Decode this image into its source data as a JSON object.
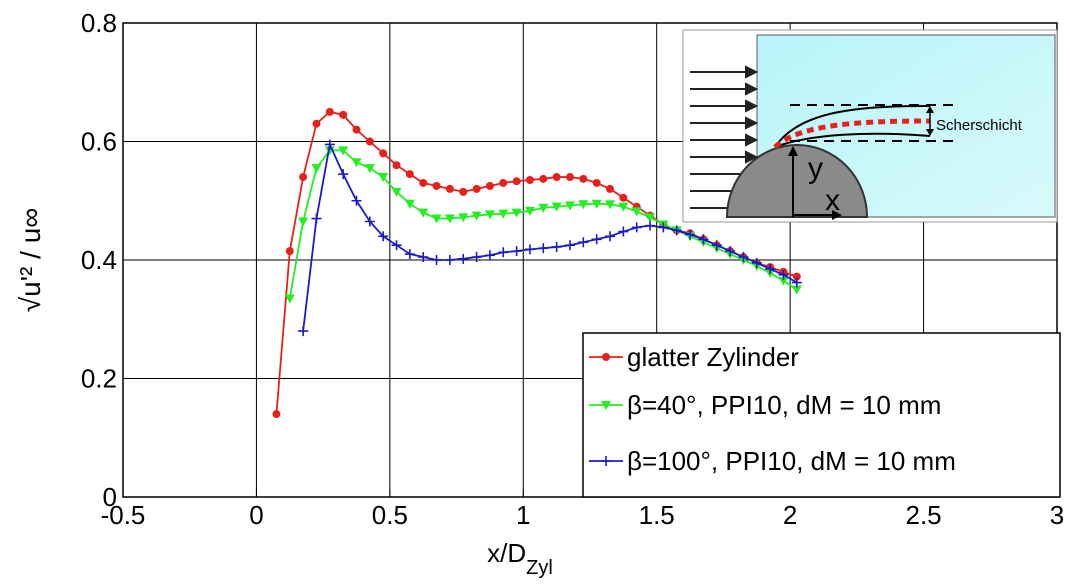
{
  "chart_data": {
    "type": "line",
    "xlabel": "x/D",
    "xlabel_sub": "Zyl",
    "ylabel": "√u'² / u∞",
    "xlim": [
      -0.5,
      3
    ],
    "xticks": [
      -0.5,
      0,
      0.5,
      1,
      1.5,
      2,
      2.5,
      3
    ],
    "ylim": [
      0,
      0.8
    ],
    "yticks": [
      0,
      0.2,
      0.4,
      0.6,
      0.8
    ],
    "grid": true,
    "legend": "lower right",
    "series": [
      {
        "name": "glatter Zylinder",
        "color": "#e8201c",
        "marker": "circle",
        "x": [
          0.075,
          0.125,
          0.175,
          0.225,
          0.275,
          0.325,
          0.375,
          0.425,
          0.475,
          0.525,
          0.575,
          0.625,
          0.675,
          0.725,
          0.775,
          0.825,
          0.875,
          0.925,
          0.975,
          1.025,
          1.075,
          1.125,
          1.175,
          1.225,
          1.275,
          1.325,
          1.375,
          1.425,
          1.475,
          1.525,
          1.575,
          1.625,
          1.675,
          1.725,
          1.775,
          1.825,
          1.875,
          1.925,
          1.975,
          2.025
        ],
        "values": [
          0.14,
          0.415,
          0.54,
          0.63,
          0.65,
          0.645,
          0.62,
          0.6,
          0.58,
          0.56,
          0.545,
          0.53,
          0.525,
          0.52,
          0.515,
          0.52,
          0.525,
          0.53,
          0.533,
          0.535,
          0.537,
          0.54,
          0.54,
          0.537,
          0.53,
          0.52,
          0.505,
          0.49,
          0.475,
          0.46,
          0.45,
          0.445,
          0.435,
          0.425,
          0.415,
          0.405,
          0.395,
          0.388,
          0.38,
          0.372
        ]
      },
      {
        "name": "β=40°, PPI10, dM = 10 mm",
        "color": "#22ee22",
        "marker": "triangle-down",
        "x": [
          0.125,
          0.175,
          0.225,
          0.275,
          0.325,
          0.375,
          0.425,
          0.475,
          0.525,
          0.575,
          0.625,
          0.675,
          0.725,
          0.775,
          0.825,
          0.875,
          0.925,
          0.975,
          1.025,
          1.075,
          1.125,
          1.175,
          1.225,
          1.275,
          1.325,
          1.375,
          1.425,
          1.475,
          1.525,
          1.575,
          1.625,
          1.675,
          1.725,
          1.775,
          1.825,
          1.875,
          1.925,
          1.975,
          2.025
        ],
        "values": [
          0.335,
          0.465,
          0.555,
          0.585,
          0.585,
          0.565,
          0.555,
          0.54,
          0.515,
          0.495,
          0.48,
          0.47,
          0.47,
          0.472,
          0.475,
          0.477,
          0.478,
          0.48,
          0.483,
          0.488,
          0.49,
          0.492,
          0.494,
          0.495,
          0.494,
          0.49,
          0.482,
          0.472,
          0.46,
          0.45,
          0.44,
          0.43,
          0.42,
          0.41,
          0.4,
          0.39,
          0.378,
          0.365,
          0.35
        ]
      },
      {
        "name": "β=100°, PPI10, dM = 10 mm",
        "color": "#1a1acc",
        "marker": "plus",
        "x": [
          0.175,
          0.225,
          0.275,
          0.325,
          0.375,
          0.425,
          0.475,
          0.525,
          0.575,
          0.625,
          0.675,
          0.725,
          0.775,
          0.825,
          0.875,
          0.925,
          0.975,
          1.025,
          1.075,
          1.125,
          1.175,
          1.225,
          1.275,
          1.325,
          1.375,
          1.425,
          1.475,
          1.525,
          1.575,
          1.625,
          1.675,
          1.725,
          1.775,
          1.825,
          1.875,
          1.925,
          1.975,
          2.025
        ],
        "values": [
          0.28,
          0.47,
          0.595,
          0.545,
          0.5,
          0.465,
          0.44,
          0.425,
          0.41,
          0.405,
          0.4,
          0.4,
          0.402,
          0.405,
          0.408,
          0.413,
          0.415,
          0.418,
          0.42,
          0.422,
          0.425,
          0.43,
          0.435,
          0.44,
          0.448,
          0.455,
          0.458,
          0.455,
          0.45,
          0.443,
          0.435,
          0.425,
          0.415,
          0.405,
          0.395,
          0.385,
          0.375,
          0.362
        ]
      }
    ],
    "inset": {
      "label": "Scherschicht",
      "axis_y": "y",
      "axis_x": "x"
    }
  }
}
